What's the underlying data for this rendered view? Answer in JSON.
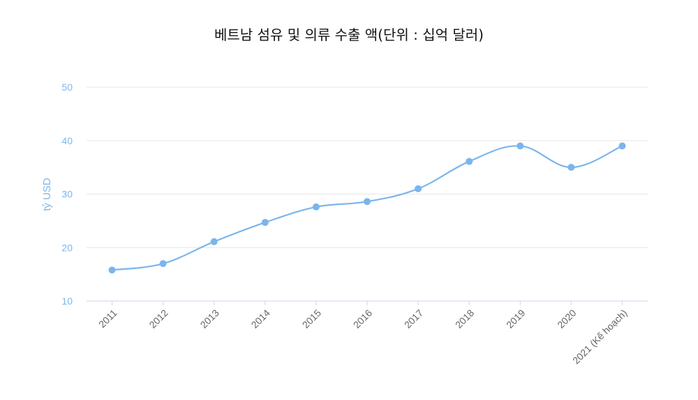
{
  "chart_data": {
    "type": "line",
    "title": "베트남 섬유 및 의류 수출 액(단위 : 십억 달러)",
    "ylabel": "tỷ USD",
    "xlabel": "",
    "categories": [
      "2011",
      "2012",
      "2013",
      "2014",
      "2015",
      "2016",
      "2017",
      "2018",
      "2019",
      "2020",
      "2021 (Kế hoạch)"
    ],
    "series": [
      {
        "values": [
          15.8,
          17.0,
          21.1,
          24.7,
          27.6,
          28.6,
          31.0,
          36.1,
          39.0,
          35.0,
          39.0
        ]
      }
    ],
    "ylim": [
      10,
      50
    ],
    "yticks": [
      10,
      20,
      30,
      40,
      50
    ],
    "grid": true,
    "legend": "none"
  },
  "colors": {
    "line": "#7cb5ec",
    "axis_text": "#7cb5ec",
    "grid": "#e6e6e6",
    "x_tick_text": "#666666"
  }
}
